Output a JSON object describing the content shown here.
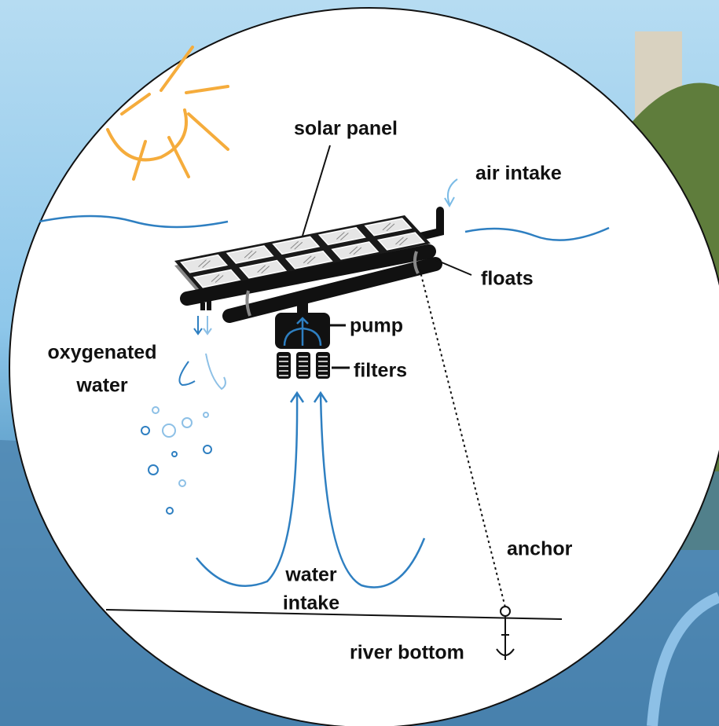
{
  "labels": {
    "solar_panel": "solar panel",
    "air_intake": "air intake",
    "floats": "floats",
    "pump": "pump",
    "filters": "filters",
    "oxygenated_water": [
      "oxygenated",
      "water"
    ],
    "water_intake": [
      "water",
      "intake"
    ],
    "anchor": "anchor",
    "river_bottom": "river bottom"
  }
}
